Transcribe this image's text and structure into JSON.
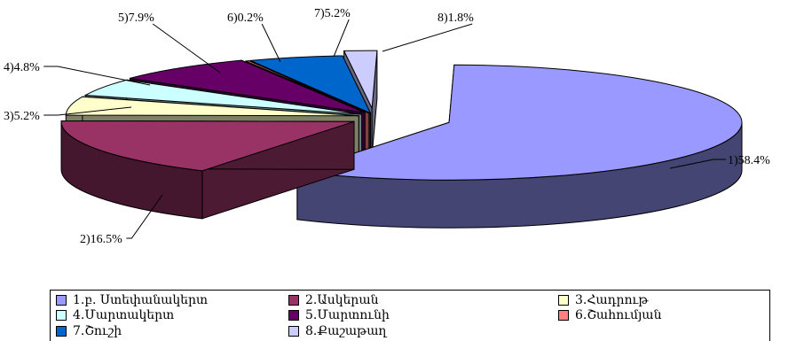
{
  "chart_data": {
    "type": "pie",
    "style": "3d-exploded",
    "categories": [
      "1.բ. Ստեփանակերտ",
      "2.Ասկերան",
      "3.Հադրութ",
      "4.Մարտակերտ",
      "5.Մարտունի",
      "6.Շահումյան",
      "7.Շուշի",
      "8.Քաշաթաղ"
    ],
    "values": [
      58.4,
      16.5,
      5.2,
      4.8,
      7.9,
      0.2,
      5.2,
      1.8
    ],
    "data_labels": [
      "1)58.4%",
      "2)16.5%",
      "3)5.2%",
      "4)4.8%",
      "5)7.9%",
      "6)0.2%",
      "7)5.2%",
      "8)1.8%"
    ],
    "colors": [
      "#9999ff",
      "#993366",
      "#ffffcc",
      "#ccffff",
      "#660066",
      "#ff8080",
      "#0066cc",
      "#ccccff"
    ],
    "legend_position": "bottom",
    "title": ""
  }
}
